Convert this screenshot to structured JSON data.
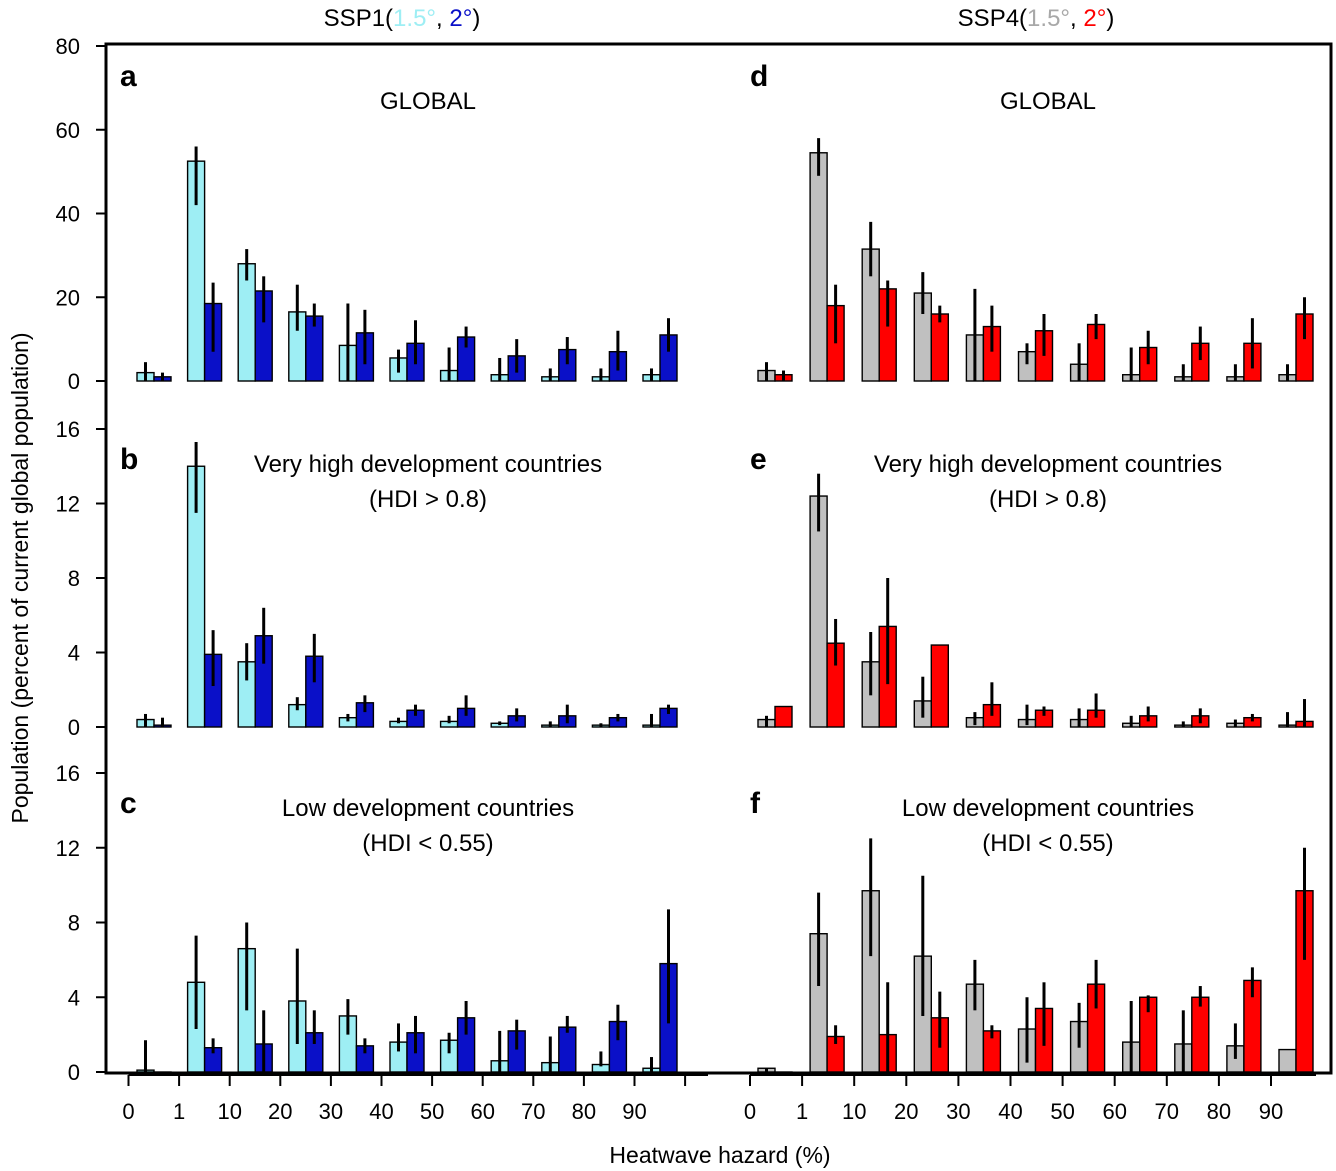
{
  "figure": {
    "titles": [
      {
        "scenario": "SSP1(",
        "low": "1.5°",
        "sep": ", ",
        "high": "2°",
        "close": ")",
        "low_color": "#9eeef4",
        "high_color": "#0a10c8"
      },
      {
        "scenario": "SSP4(",
        "low": "1.5°",
        "sep": ", ",
        "high": "2°",
        "close": ")",
        "low_color": "#a8a8a8",
        "high_color": "#ff0000"
      }
    ],
    "ylabel": "Population (percent of current global population)",
    "xlabel": "Heatwave hazard (%)",
    "x_tick_labels": [
      "0",
      "1",
      "10",
      "20",
      "30",
      "40",
      "50",
      "60",
      "70",
      "80",
      "90"
    ]
  },
  "chart_data": [
    {
      "type": "bar",
      "panel": "a",
      "scenario": "SSP1",
      "title": [
        "GLOBAL"
      ],
      "ylim": [
        0,
        80
      ],
      "yticks": [
        0,
        20,
        40,
        60,
        80
      ],
      "categories": [
        "0-1",
        "1-10",
        "10-20",
        "20-30",
        "30-40",
        "40-50",
        "50-60",
        "60-70",
        "70-80",
        "80-90",
        "90-100"
      ],
      "series": [
        {
          "name": "1.5°",
          "color": "#9eeef4",
          "values": [
            2,
            52.5,
            28,
            16.5,
            8.5,
            5.5,
            2.5,
            1.5,
            1,
            1,
            1.5
          ],
          "errors": [
            [
              0,
              4.5
            ],
            [
              42,
              56
            ],
            [
              24,
              31.5
            ],
            [
              12,
              23
            ],
            [
              0,
              18.5
            ],
            [
              2,
              7.5
            ],
            [
              0,
              8
            ],
            [
              0,
              5.5
            ],
            [
              0,
              3
            ],
            [
              0,
              3
            ],
            [
              0,
              3
            ]
          ]
        },
        {
          "name": "2°",
          "color": "#0a10c8",
          "values": [
            1,
            18.5,
            21.5,
            15.5,
            11.5,
            9,
            10.5,
            6,
            7.5,
            7,
            11
          ],
          "errors": [
            [
              0,
              2
            ],
            [
              7,
              23.5
            ],
            [
              14,
              25
            ],
            [
              13,
              18.5
            ],
            [
              4,
              17
            ],
            [
              4,
              14.5
            ],
            [
              8,
              13
            ],
            [
              2,
              10
            ],
            [
              4,
              10.5
            ],
            [
              2.5,
              12
            ],
            [
              7,
              15
            ]
          ]
        }
      ]
    },
    {
      "type": "bar",
      "panel": "b",
      "scenario": "SSP1",
      "title": [
        "Very high development countries",
        "(HDI > 0.8)"
      ],
      "ylim": [
        0,
        16
      ],
      "yticks": [
        0,
        4,
        8,
        12,
        16
      ],
      "categories": [
        "0-1",
        "1-10",
        "10-20",
        "20-30",
        "30-40",
        "40-50",
        "50-60",
        "60-70",
        "70-80",
        "80-90",
        "90-100"
      ],
      "series": [
        {
          "name": "1.5°",
          "color": "#9eeef4",
          "values": [
            0.4,
            14,
            3.5,
            1.2,
            0.5,
            0.3,
            0.3,
            0.2,
            0.1,
            0.1,
            0.1
          ],
          "errors": [
            [
              0,
              0.7
            ],
            [
              11.5,
              15.3
            ],
            [
              2.5,
              4.5
            ],
            [
              0.9,
              1.6
            ],
            [
              0.3,
              0.7
            ],
            [
              0.2,
              0.5
            ],
            [
              0.2,
              0.6
            ],
            [
              0.1,
              0.3
            ],
            [
              0,
              0.3
            ],
            [
              0,
              0.2
            ],
            [
              0,
              0.7
            ]
          ]
        },
        {
          "name": "2°",
          "color": "#0a10c8",
          "values": [
            0.1,
            3.9,
            4.9,
            3.8,
            1.3,
            0.9,
            1,
            0.6,
            0.6,
            0.5,
            1
          ],
          "errors": [
            [
              0,
              0.5
            ],
            [
              2.2,
              5.2
            ],
            [
              3.4,
              6.4
            ],
            [
              2.4,
              5
            ],
            [
              0.8,
              1.7
            ],
            [
              0.6,
              1.2
            ],
            [
              0.6,
              1.7
            ],
            [
              0.3,
              1
            ],
            [
              0.2,
              1.2
            ],
            [
              0.3,
              0.7
            ],
            [
              0.7,
              1.2
            ]
          ]
        }
      ]
    },
    {
      "type": "bar",
      "panel": "c",
      "scenario": "SSP1",
      "title": [
        "Low development countries",
        "(HDI < 0.55)"
      ],
      "ylim": [
        0,
        16
      ],
      "yticks": [
        0,
        4,
        8,
        12,
        16
      ],
      "categories": [
        "0-1",
        "1-10",
        "10-20",
        "20-30",
        "30-40",
        "40-50",
        "50-60",
        "60-70",
        "70-80",
        "80-90",
        "90-100"
      ],
      "series": [
        {
          "name": "1.5°",
          "color": "#9eeef4",
          "values": [
            0.1,
            4.8,
            6.6,
            3.8,
            3,
            1.6,
            1.7,
            0.6,
            0.5,
            0.4,
            0.2
          ],
          "errors": [
            [
              0,
              1.7
            ],
            [
              2.3,
              7.3
            ],
            [
              3.3,
              8
            ],
            [
              1.5,
              6.6
            ],
            [
              2,
              3.9
            ],
            [
              1.1,
              2.6
            ],
            [
              1,
              2.1
            ],
            [
              0,
              2.2
            ],
            [
              0,
              1.9
            ],
            [
              0.3,
              1.1
            ],
            [
              0,
              0.8
            ]
          ]
        },
        {
          "name": "2°",
          "color": "#0a10c8",
          "values": [
            0,
            1.3,
            1.5,
            2.1,
            1.4,
            2.1,
            2.9,
            2.2,
            2.4,
            2.7,
            5.8
          ],
          "errors": [
            [
              0,
              0
            ],
            [
              1,
              1.8
            ],
            [
              0,
              3.3
            ],
            [
              1.5,
              3.3
            ],
            [
              1,
              1.8
            ],
            [
              1,
              3
            ],
            [
              2,
              3.8
            ],
            [
              1.2,
              2.8
            ],
            [
              2.1,
              3
            ],
            [
              1.7,
              3.6
            ],
            [
              2.6,
              8.7
            ]
          ]
        }
      ]
    },
    {
      "type": "bar",
      "panel": "d",
      "scenario": "SSP4",
      "title": [
        "GLOBAL"
      ],
      "ylim": [
        0,
        80
      ],
      "yticks": [
        0,
        20,
        40,
        60,
        80
      ],
      "categories": [
        "0-1",
        "1-10",
        "10-20",
        "20-30",
        "30-40",
        "40-50",
        "50-60",
        "60-70",
        "70-80",
        "80-90",
        "90-100"
      ],
      "series": [
        {
          "name": "1.5°",
          "color": "#c0c0c0",
          "values": [
            2.5,
            54.5,
            31.5,
            21,
            11,
            7,
            4,
            1.5,
            1,
            1,
            1.5
          ],
          "errors": [
            [
              0,
              4.5
            ],
            [
              49,
              58
            ],
            [
              25,
              38
            ],
            [
              16,
              26
            ],
            [
              0,
              22
            ],
            [
              4,
              9
            ],
            [
              0,
              9
            ],
            [
              0,
              8
            ],
            [
              0,
              4
            ],
            [
              0,
              4
            ],
            [
              0,
              4
            ]
          ]
        },
        {
          "name": "2°",
          "color": "#ff0000",
          "values": [
            1.5,
            18,
            22,
            16,
            13,
            12,
            13.5,
            8,
            9,
            9,
            16
          ],
          "errors": [
            [
              0,
              2.5
            ],
            [
              9,
              23
            ],
            [
              13,
              24
            ],
            [
              14,
              18
            ],
            [
              7,
              18
            ],
            [
              6,
              16
            ],
            [
              10,
              16
            ],
            [
              4,
              12
            ],
            [
              5,
              13
            ],
            [
              3,
              15
            ],
            [
              10,
              20
            ]
          ]
        }
      ]
    },
    {
      "type": "bar",
      "panel": "e",
      "scenario": "SSP4",
      "title": [
        "Very high development countries",
        "(HDI > 0.8)"
      ],
      "ylim": [
        0,
        16
      ],
      "yticks": [
        0,
        4,
        8,
        12,
        16
      ],
      "categories": [
        "0-1",
        "1-10",
        "10-20",
        "20-30",
        "30-40",
        "40-50",
        "50-60",
        "60-70",
        "70-80",
        "80-90",
        "90-100"
      ],
      "series": [
        {
          "name": "1.5°",
          "color": "#c0c0c0",
          "values": [
            0.4,
            12.4,
            3.5,
            1.4,
            0.5,
            0.4,
            0.4,
            0.2,
            0.1,
            0.2,
            0.1
          ],
          "errors": [
            [
              0,
              0.6
            ],
            [
              10.5,
              13.6
            ],
            [
              1.7,
              5.1
            ],
            [
              0.5,
              2.7
            ],
            [
              0.1,
              0.8
            ],
            [
              0.1,
              1.2
            ],
            [
              0,
              1
            ],
            [
              0,
              0.6
            ],
            [
              0,
              0.3
            ],
            [
              0,
              0.4
            ],
            [
              0,
              0.8
            ]
          ]
        },
        {
          "name": "2°",
          "color": "#ff0000",
          "values": [
            1.1,
            4.5,
            5.4,
            4.4,
            1.2,
            0.9,
            0.9,
            0.6,
            0.6,
            0.5,
            0.3
          ],
          "errors": [
            [
              1.1,
              1.1
            ],
            [
              3.3,
              5.8
            ],
            [
              2.3,
              8
            ],
            [
              4.4,
              4.4
            ],
            [
              0.6,
              2.4
            ],
            [
              0.6,
              1.1
            ],
            [
              0.5,
              1.8
            ],
            [
              0.3,
              1.1
            ],
            [
              0.2,
              1
            ],
            [
              0.3,
              0.7
            ],
            [
              0,
              1.5
            ]
          ]
        }
      ]
    },
    {
      "type": "bar",
      "panel": "f",
      "scenario": "SSP4",
      "title": [
        "Low development countries",
        "(HDI < 0.55)"
      ],
      "ylim": [
        0,
        16
      ],
      "yticks": [
        0,
        4,
        8,
        12,
        16
      ],
      "categories": [
        "0-1",
        "1-10",
        "10-20",
        "20-30",
        "30-40",
        "40-50",
        "50-60",
        "60-70",
        "70-80",
        "80-90",
        "90-100"
      ],
      "series": [
        {
          "name": "1.5°",
          "color": "#c0c0c0",
          "values": [
            0.2,
            7.4,
            9.7,
            6.2,
            4.7,
            2.3,
            2.7,
            1.6,
            1.5,
            1.4,
            1.2
          ],
          "errors": [
            [
              0,
              0.2
            ],
            [
              4.6,
              9.6
            ],
            [
              6.2,
              12.5
            ],
            [
              3,
              10.5
            ],
            [
              3.3,
              6
            ],
            [
              0.5,
              4
            ],
            [
              1.3,
              3.7
            ],
            [
              0,
              3.8
            ],
            [
              0,
              3.3
            ],
            [
              0.7,
              2.6
            ],
            [
              1.2,
              1.2
            ]
          ]
        },
        {
          "name": "2°",
          "color": "#ff0000",
          "values": [
            0,
            1.9,
            2,
            2.9,
            2.2,
            3.4,
            4.7,
            4,
            4,
            4.9,
            9.7
          ],
          "errors": [
            [
              0,
              0
            ],
            [
              1.5,
              2.5
            ],
            [
              0,
              4.8
            ],
            [
              1.3,
              4.3
            ],
            [
              1.8,
              2.5
            ],
            [
              1.4,
              4.8
            ],
            [
              3.4,
              6
            ],
            [
              3.2,
              4.1
            ],
            [
              3.5,
              4.6
            ],
            [
              4,
              5.6
            ],
            [
              6,
              12
            ]
          ]
        }
      ]
    }
  ]
}
